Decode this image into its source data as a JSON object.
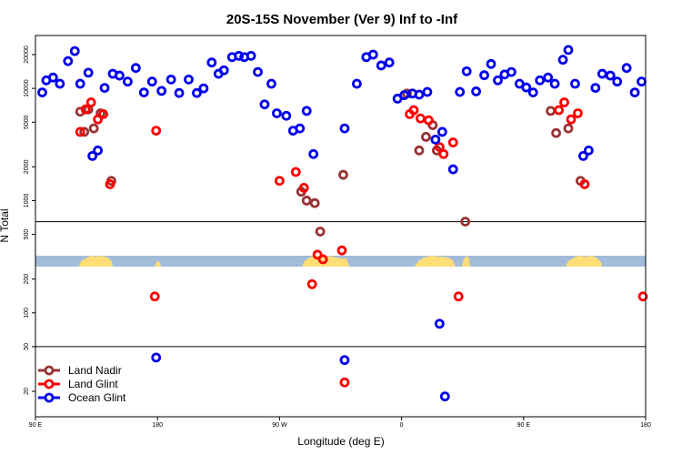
{
  "chart_data": {
    "type": "scatter",
    "title": "20S-15S November (Ver 9)   Inf to -Inf",
    "xlabel": "Longitude (deg E)",
    "ylabel": "N Total",
    "x_scale": "longitude, 90E to 180 across 450 degrees",
    "xlim": [
      90,
      540
    ],
    "x_ticks": [
      {
        "value": 90,
        "label": "90 E"
      },
      {
        "value": 180,
        "label": "180"
      },
      {
        "value": 270,
        "label": "90 W"
      },
      {
        "value": 360,
        "label": "0"
      },
      {
        "value": 450,
        "label": "90 E"
      },
      {
        "value": 540,
        "label": "180"
      }
    ],
    "y_scale": "log",
    "ylim": [
      13,
      30000
    ],
    "y_ticks": [
      {
        "value": 20,
        "label": "20"
      },
      {
        "value": 50,
        "label": "50"
      },
      {
        "value": 100,
        "label": "100"
      },
      {
        "value": 200,
        "label": "200"
      },
      {
        "value": 500,
        "label": "500"
      },
      {
        "value": 1000,
        "label": "1000"
      },
      {
        "value": 2000,
        "label": "2000"
      },
      {
        "value": 5000,
        "label": "5000"
      },
      {
        "value": 10000,
        "label": "10000"
      },
      {
        "value": 20000,
        "label": "20000"
      }
    ],
    "legend_position": "bottom-left",
    "series": [
      {
        "name": "Land Nadir",
        "color": "#993333",
        "points": [
          [
            123,
            6200
          ],
          [
            126,
            4100
          ],
          [
            129,
            6500
          ],
          [
            133,
            4400
          ],
          [
            138,
            6000
          ],
          [
            146,
            1500
          ],
          [
            286,
            1200
          ],
          [
            290,
            1000
          ],
          [
            296,
            950
          ],
          [
            300,
            530
          ],
          [
            317,
            1700
          ],
          [
            364,
            9000
          ],
          [
            373,
            2800
          ],
          [
            378,
            3700
          ],
          [
            383,
            4700
          ],
          [
            386,
            2800
          ],
          [
            407,
            650
          ],
          [
            470,
            6300
          ],
          [
            474,
            4000
          ],
          [
            483,
            4400
          ],
          [
            492,
            1500
          ]
        ]
      },
      {
        "name": "Land Glint",
        "color": "#ff0000",
        "points": [
          [
            123,
            4100
          ],
          [
            127,
            6500
          ],
          [
            131,
            7500
          ],
          [
            136,
            5300
          ],
          [
            140,
            5900
          ],
          [
            145,
            1400
          ],
          [
            179,
            4200
          ],
          [
            270,
            1500
          ],
          [
            282,
            1800
          ],
          [
            288,
            1300
          ],
          [
            294,
            180
          ],
          [
            298,
            330
          ],
          [
            302,
            300
          ],
          [
            316,
            360
          ],
          [
            366,
            5900
          ],
          [
            369,
            6400
          ],
          [
            374,
            5400
          ],
          [
            380,
            5200
          ],
          [
            388,
            3000
          ],
          [
            391,
            2600
          ],
          [
            398,
            3300
          ],
          [
            402,
            140
          ],
          [
            476,
            6400
          ],
          [
            480,
            7500
          ],
          [
            485,
            5300
          ],
          [
            490,
            6000
          ],
          [
            495,
            1400
          ],
          [
            538,
            140
          ],
          [
            178,
            140
          ],
          [
            318,
            24
          ]
        ]
      },
      {
        "name": "Ocean Glint",
        "color": "#0000ee",
        "points": [
          [
            95,
            9200
          ],
          [
            98,
            11800
          ],
          [
            103,
            12500
          ],
          [
            108,
            11000
          ],
          [
            114,
            17500
          ],
          [
            119,
            21500
          ],
          [
            123,
            11000
          ],
          [
            129,
            13800
          ],
          [
            132,
            2500
          ],
          [
            136,
            2800
          ],
          [
            141,
            10100
          ],
          [
            147,
            13500
          ],
          [
            152,
            13000
          ],
          [
            158,
            11500
          ],
          [
            164,
            15200
          ],
          [
            170,
            9200
          ],
          [
            176,
            11500
          ],
          [
            183,
            9500
          ],
          [
            190,
            12000
          ],
          [
            196,
            9100
          ],
          [
            203,
            12000
          ],
          [
            209,
            9100
          ],
          [
            214,
            10000
          ],
          [
            220,
            17000
          ],
          [
            225,
            13500
          ],
          [
            229,
            14500
          ],
          [
            235,
            19000
          ],
          [
            240,
            19500
          ],
          [
            244,
            19000
          ],
          [
            249,
            19500
          ],
          [
            254,
            14000
          ],
          [
            259,
            7200
          ],
          [
            264,
            11000
          ],
          [
            268,
            6000
          ],
          [
            275,
            5700
          ],
          [
            280,
            4200
          ],
          [
            285,
            4400
          ],
          [
            290,
            6300
          ],
          [
            295,
            2600
          ],
          [
            318,
            4400
          ],
          [
            327,
            11000
          ],
          [
            334,
            19000
          ],
          [
            339,
            20000
          ],
          [
            345,
            16000
          ],
          [
            351,
            17000
          ],
          [
            357,
            8100
          ],
          [
            362,
            8700
          ],
          [
            368,
            9000
          ],
          [
            373,
            8800
          ],
          [
            379,
            9300
          ],
          [
            385,
            3500
          ],
          [
            390,
            4100
          ],
          [
            398,
            1900
          ],
          [
            403,
            9300
          ],
          [
            408,
            14200
          ],
          [
            415,
            9400
          ],
          [
            421,
            13100
          ],
          [
            426,
            16500
          ],
          [
            431,
            11800
          ],
          [
            436,
            13300
          ],
          [
            441,
            14000
          ],
          [
            447,
            11000
          ],
          [
            452,
            10200
          ],
          [
            457,
            9200
          ],
          [
            462,
            11800
          ],
          [
            468,
            12500
          ],
          [
            473,
            11000
          ],
          [
            479,
            18000
          ],
          [
            483,
            22000
          ],
          [
            488,
            11000
          ],
          [
            494,
            2500
          ],
          [
            498,
            2800
          ],
          [
            503,
            10100
          ],
          [
            508,
            13500
          ],
          [
            514,
            13000
          ],
          [
            519,
            11500
          ],
          [
            526,
            15200
          ],
          [
            532,
            9200
          ],
          [
            537,
            11500
          ],
          [
            388,
            80
          ],
          [
            179,
            40
          ],
          [
            318,
            38
          ],
          [
            392,
            18
          ]
        ]
      }
    ]
  }
}
